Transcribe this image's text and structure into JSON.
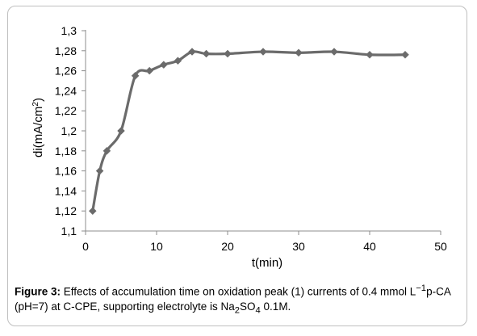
{
  "chart_data": {
    "type": "line",
    "x": [
      1,
      2,
      3,
      5,
      7,
      9,
      11,
      13,
      15,
      17,
      20,
      25,
      30,
      35,
      40,
      45
    ],
    "series": [
      {
        "values": [
          1.12,
          1.16,
          1.18,
          1.2,
          1.255,
          1.26,
          1.266,
          1.27,
          1.279,
          1.277,
          1.277,
          1.279,
          1.278,
          1.279,
          1.276,
          1.276
        ]
      }
    ],
    "xlabel": "t(min)",
    "ylabel_main": "di(mA/cm",
    "ylabel_sup": "2",
    "ylabel_end": ")",
    "xlim": [
      0,
      50
    ],
    "ylim": [
      1.1,
      1.3
    ],
    "xticks": [
      0,
      10,
      20,
      30,
      40,
      50
    ],
    "xtick_labels": [
      "0",
      "10",
      "20",
      "30",
      "40",
      "50"
    ],
    "yticks": [
      1.1,
      1.12,
      1.14,
      1.16,
      1.18,
      1.2,
      1.22,
      1.24,
      1.26,
      1.28,
      1.3
    ],
    "ytick_labels": [
      "1,1",
      "1,12",
      "1,14",
      "1,16",
      "1,18",
      "1,2",
      "1,22",
      "1,24",
      "1,26",
      "1,28",
      "1,3"
    ],
    "grid": false,
    "legend": "none",
    "line_color": "#6b6b6b",
    "marker_color": "#6b6b6b",
    "marker": "diamond"
  },
  "caption": {
    "label": "Figure 3:",
    "text_1": " Effects of accumulation time on oxidation peak (1) currents of 0.4 mmol L",
    "sup_1": "−1",
    "text_2": "p-CA (pH=7) at C-CPE, supporting electrolyte is Na",
    "sub_1": "2",
    "text_3": "SO",
    "sub_2": "4",
    "text_4": " 0.1M."
  }
}
